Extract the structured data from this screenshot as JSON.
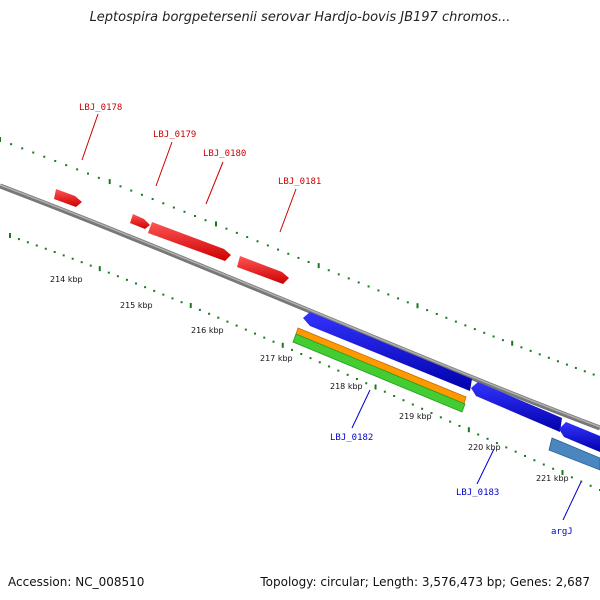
{
  "title": "Leptospira borgpetersenii serovar Hardjo-bovis JB197 chromos...",
  "footer": {
    "accession": "Accession: NC_008510",
    "summary": "Topology: circular; Length: 3,576,473 bp; Genes: 2,687"
  },
  "ticks": [
    {
      "label": "214 kbp"
    },
    {
      "label": "215 kbp"
    },
    {
      "label": "216 kbp"
    },
    {
      "label": "217 kbp"
    },
    {
      "label": "218 kbp"
    },
    {
      "label": "219 kbp"
    },
    {
      "label": "220 kbp"
    },
    {
      "label": "221 kbp"
    }
  ],
  "genes": [
    {
      "name": "LBJ_0178",
      "strand": "forward",
      "color": "#cc0000"
    },
    {
      "name": "LBJ_0179",
      "strand": "forward",
      "color": "#cc0000"
    },
    {
      "name": "LBJ_0180",
      "strand": "forward",
      "color": "#cc0000"
    },
    {
      "name": "LBJ_0181",
      "strand": "forward",
      "color": "#cc0000"
    },
    {
      "name": "LBJ_0182",
      "strand": "reverse",
      "color": "#0000cc"
    },
    {
      "name": "LBJ_0183",
      "strand": "reverse",
      "color": "#0000cc"
    },
    {
      "name": "argJ",
      "strand": "reverse",
      "color": "#0000cc"
    }
  ],
  "colors": {
    "forward_gene": "#ff1a1a",
    "reverse_gene": "#1a1aee",
    "orange_feature": "#ff9900",
    "green_feature": "#44cc33",
    "steelblue_feature": "#4a86c0",
    "backbone": "#888888",
    "tick": "#1a7a1a"
  }
}
